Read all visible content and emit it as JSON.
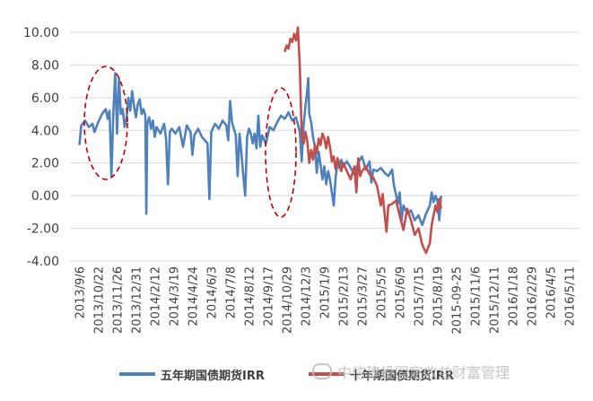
{
  "chart_data": {
    "type": "line",
    "title": "",
    "xlabel": "",
    "ylabel": "",
    "ylim": [
      -4,
      10
    ],
    "yticks": [
      "10.00",
      "8.00",
      "6.00",
      "4.00",
      "2.00",
      "0.00",
      "-2.00",
      "-4.00"
    ],
    "ytick_values": [
      10,
      8,
      6,
      4,
      2,
      0,
      -2,
      -4
    ],
    "x_tick_labels": [
      "2013/9/6",
      "2013/10/22",
      "2013/11/26",
      "2013/12/31",
      "2014/2/12",
      "2014/3/19",
      "2014/4/24",
      "2014/6/3",
      "2014/7/8",
      "2014/8/12",
      "2014/9/17",
      "2014/10/29",
      "2014/12/3",
      "2015/1/9",
      "2015/2/13",
      "2015/3/27",
      "2015/5/5",
      "2015/6/9",
      "2015/7/15",
      "2015/8/19",
      "2015-09-25",
      "2015/11/6",
      "2015/12/11",
      "2016/1/18",
      "2016/2/29",
      "2016/4/5",
      "2016/5/11"
    ],
    "grid": "horizontal",
    "legend_position": "bottom",
    "series": [
      {
        "name": "五年期国债期货IRR",
        "color": "#4f81bd",
        "points": [
          [
            0,
            3.1
          ],
          [
            0.1,
            4.3
          ],
          [
            0.3,
            4.6
          ],
          [
            0.5,
            4.2
          ],
          [
            0.7,
            4.4
          ],
          [
            0.8,
            3.9
          ],
          [
            1.0,
            4.5
          ],
          [
            1.2,
            5.0
          ],
          [
            1.4,
            5.3
          ],
          [
            1.5,
            4.7
          ],
          [
            1.6,
            5.2
          ],
          [
            1.7,
            1.2
          ],
          [
            1.8,
            5.0
          ],
          [
            1.9,
            7.5
          ],
          [
            2.0,
            3.8
          ],
          [
            2.1,
            7.2
          ],
          [
            2.2,
            5.0
          ],
          [
            2.3,
            5.3
          ],
          [
            2.4,
            4.2
          ],
          [
            2.5,
            4.7
          ],
          [
            2.6,
            6.0
          ],
          [
            2.7,
            5.2
          ],
          [
            2.8,
            6.4
          ],
          [
            2.9,
            5.5
          ],
          [
            3.0,
            4.8
          ],
          [
            3.1,
            5.6
          ],
          [
            3.2,
            5.9
          ],
          [
            3.3,
            5.0
          ],
          [
            3.4,
            5.3
          ],
          [
            3.5,
            4.9
          ],
          [
            3.55,
            -1.1
          ],
          [
            3.6,
            4.4
          ],
          [
            3.7,
            4.8
          ],
          [
            3.8,
            4.1
          ],
          [
            3.9,
            4.6
          ],
          [
            4.0,
            3.6
          ],
          [
            4.1,
            4.2
          ],
          [
            4.3,
            3.8
          ],
          [
            4.5,
            4.4
          ],
          [
            4.6,
            3.5
          ],
          [
            4.7,
            0.7
          ],
          [
            4.8,
            3.9
          ],
          [
            4.9,
            4.1
          ],
          [
            5.1,
            3.8
          ],
          [
            5.3,
            4.2
          ],
          [
            5.5,
            3.0
          ],
          [
            5.7,
            4.3
          ],
          [
            5.9,
            3.9
          ],
          [
            6.0,
            2.5
          ],
          [
            6.1,
            3.7
          ],
          [
            6.3,
            4.1
          ],
          [
            6.5,
            3.6
          ],
          [
            6.8,
            3.2
          ],
          [
            6.9,
            -0.2
          ],
          [
            7.0,
            3.9
          ],
          [
            7.2,
            4.4
          ],
          [
            7.4,
            4.1
          ],
          [
            7.6,
            4.6
          ],
          [
            7.8,
            4.3
          ],
          [
            7.9,
            3.4
          ],
          [
            8.0,
            5.8
          ],
          [
            8.1,
            4.5
          ],
          [
            8.3,
            3.7
          ],
          [
            8.4,
            1.2
          ],
          [
            8.5,
            3.8
          ],
          [
            8.6,
            2.6
          ],
          [
            8.7,
            1.2
          ],
          [
            8.8,
            0.0
          ],
          [
            8.9,
            3.6
          ],
          [
            9.0,
            4.1
          ],
          [
            9.1,
            3.8
          ],
          [
            9.2,
            3.2
          ],
          [
            9.3,
            3.8
          ],
          [
            9.4,
            2.9
          ],
          [
            9.5,
            4.9
          ],
          [
            9.6,
            3.0
          ],
          [
            9.7,
            3.7
          ],
          [
            9.9,
            3.2
          ],
          [
            10.1,
            4.2
          ],
          [
            10.3,
            4.0
          ],
          [
            10.5,
            4.5
          ],
          [
            10.7,
            4.9
          ],
          [
            10.9,
            4.7
          ],
          [
            11.1,
            5.1
          ],
          [
            11.3,
            4.6
          ],
          [
            11.5,
            4.8
          ],
          [
            11.7,
            3.9
          ],
          [
            11.8,
            2.1
          ],
          [
            11.9,
            4.3
          ],
          [
            12.0,
            5.5
          ],
          [
            12.1,
            6.5
          ],
          [
            12.15,
            7.2
          ],
          [
            12.2,
            5.0
          ],
          [
            12.3,
            4.5
          ],
          [
            12.4,
            3.6
          ],
          [
            12.5,
            3.0
          ],
          [
            12.6,
            1.4
          ],
          [
            12.7,
            2.7
          ],
          [
            12.8,
            1.9
          ],
          [
            12.9,
            1.0
          ],
          [
            13.0,
            1.8
          ],
          [
            13.1,
            0.7
          ],
          [
            13.2,
            1.5
          ],
          [
            13.3,
            1.0
          ],
          [
            13.4,
            0.2
          ],
          [
            13.5,
            -0.6
          ],
          [
            13.6,
            1.1
          ],
          [
            13.7,
            2.0
          ],
          [
            13.8,
            1.7
          ],
          [
            13.9,
            2.2
          ],
          [
            14.0,
            1.8
          ],
          [
            14.2,
            2.1
          ],
          [
            14.4,
            1.7
          ],
          [
            14.6,
            1.3
          ],
          [
            14.8,
            2.0
          ],
          [
            15.0,
            2.4
          ],
          [
            15.2,
            1.6
          ],
          [
            15.4,
            2.1
          ],
          [
            15.5,
            0.8
          ],
          [
            15.6,
            1.6
          ],
          [
            15.8,
            1.5
          ],
          [
            16.0,
            1.7
          ],
          [
            16.2,
            1.4
          ],
          [
            16.4,
            1.2
          ],
          [
            16.6,
            1.6
          ],
          [
            16.7,
            0.6
          ],
          [
            16.8,
            0.1
          ],
          [
            16.9,
            -0.5
          ],
          [
            17.0,
            0.2
          ],
          [
            17.1,
            -1.5
          ],
          [
            17.2,
            -0.6
          ],
          [
            17.4,
            -1.1
          ],
          [
            17.6,
            -0.9
          ],
          [
            17.8,
            -1.5
          ],
          [
            18.0,
            -1.2
          ],
          [
            18.2,
            -1.8
          ],
          [
            18.4,
            -1.1
          ],
          [
            18.6,
            -0.6
          ],
          [
            18.7,
            0.2
          ],
          [
            18.8,
            -0.4
          ],
          [
            18.9,
            0.0
          ],
          [
            19.0,
            -0.3
          ],
          [
            19.1,
            -1.5
          ],
          [
            19.2,
            0.0
          ]
        ]
      },
      {
        "name": "十年期国债期货IRR",
        "color": "#c0504d",
        "points": [
          [
            10.9,
            8.8
          ],
          [
            11.0,
            9.2
          ],
          [
            11.1,
            9.0
          ],
          [
            11.2,
            9.6
          ],
          [
            11.3,
            9.4
          ],
          [
            11.4,
            9.9
          ],
          [
            11.5,
            9.5
          ],
          [
            11.6,
            10.3
          ],
          [
            11.7,
            7.9
          ],
          [
            11.8,
            3.7
          ],
          [
            11.9,
            3.2
          ],
          [
            12.0,
            3.9
          ],
          [
            12.1,
            3.3
          ],
          [
            12.2,
            2.0
          ],
          [
            12.3,
            2.8
          ],
          [
            12.4,
            2.2
          ],
          [
            12.5,
            3.1
          ],
          [
            12.6,
            2.6
          ],
          [
            12.7,
            3.5
          ],
          [
            12.8,
            3.1
          ],
          [
            12.9,
            3.8
          ],
          [
            13.0,
            3.5
          ],
          [
            13.1,
            2.9
          ],
          [
            13.2,
            3.6
          ],
          [
            13.3,
            3.0
          ],
          [
            13.4,
            2.1
          ],
          [
            13.5,
            2.4
          ],
          [
            13.6,
            1.6
          ],
          [
            13.7,
            2.3
          ],
          [
            13.8,
            1.9
          ],
          [
            13.9,
            1.5
          ],
          [
            14.0,
            2.0
          ],
          [
            14.2,
            1.5
          ],
          [
            14.4,
            1.0
          ],
          [
            14.6,
            1.8
          ],
          [
            14.7,
            0.2
          ],
          [
            14.8,
            2.3
          ],
          [
            14.9,
            1.2
          ],
          [
            15.0,
            1.5
          ],
          [
            15.2,
            1.8
          ],
          [
            15.4,
            1.3
          ],
          [
            15.6,
            1.1
          ],
          [
            15.8,
            0.6
          ],
          [
            16.0,
            -0.6
          ],
          [
            16.1,
            0.1
          ],
          [
            16.2,
            -1.1
          ],
          [
            16.3,
            -2.2
          ],
          [
            16.4,
            -0.6
          ],
          [
            16.6,
            -0.5
          ],
          [
            16.8,
            -0.3
          ],
          [
            17.0,
            -1.2
          ],
          [
            17.2,
            -2.1
          ],
          [
            17.4,
            -0.8
          ],
          [
            17.6,
            -1.5
          ],
          [
            17.8,
            -2.4
          ],
          [
            18.0,
            -2.0
          ],
          [
            18.2,
            -3.0
          ],
          [
            18.4,
            -3.5
          ],
          [
            18.6,
            -2.9
          ],
          [
            18.7,
            -1.8
          ],
          [
            18.8,
            -1.2
          ],
          [
            18.9,
            -0.6
          ],
          [
            19.0,
            -1.0
          ],
          [
            19.1,
            -0.2
          ],
          [
            19.2,
            -0.8
          ]
        ]
      }
    ]
  },
  "legend": {
    "items": [
      "五年期国债期货IRR",
      "十年期国债期货IRR"
    ]
  },
  "watermark": "中信建投固定收益财富管理"
}
